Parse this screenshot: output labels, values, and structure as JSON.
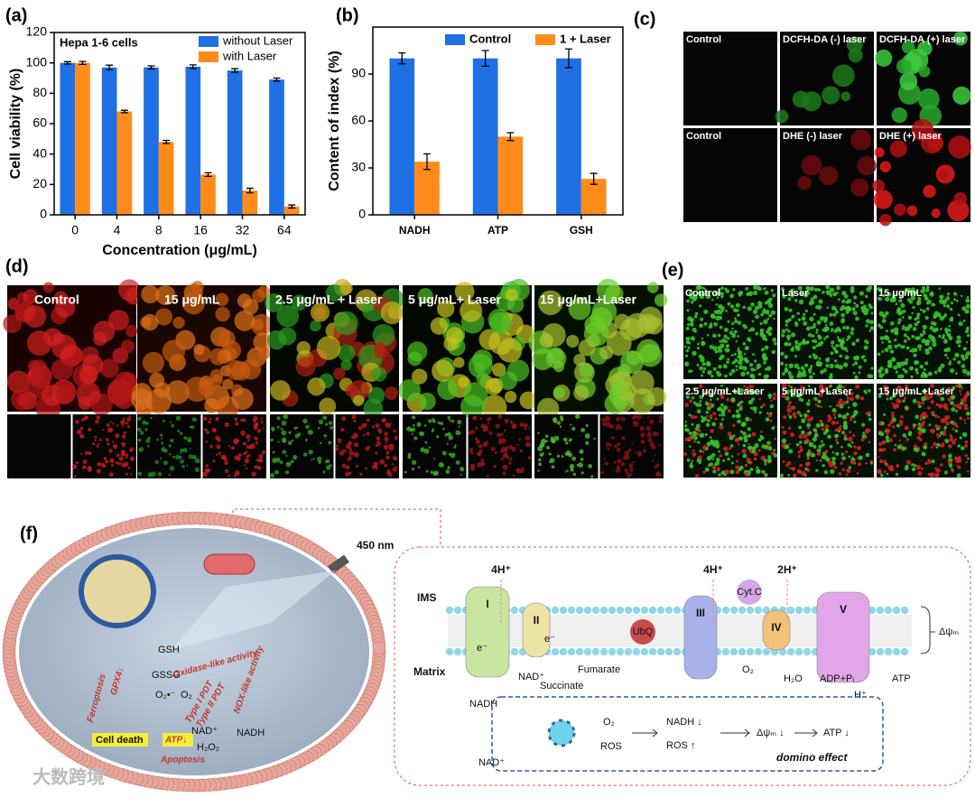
{
  "chart_data": [
    {
      "type": "bar",
      "panel": "(a)",
      "annotation": "Hepa 1-6 cells",
      "categories": [
        "0",
        "4",
        "8",
        "16",
        "32",
        "64"
      ],
      "xlabel": "Concentration (μg/mL)",
      "ylabel": "Cell viability (%)",
      "ylim": [
        0,
        120
      ],
      "yticks": [
        0,
        20,
        40,
        60,
        80,
        100,
        120
      ],
      "legend": "upper right",
      "series": [
        {
          "name": "without Laser",
          "color": "#1f6fe5",
          "values": [
            100,
            97,
            97,
            97.5,
            95,
            89
          ],
          "errors": [
            0.8,
            1.5,
            1,
            1.2,
            1.2,
            1
          ]
        },
        {
          "name": "with Laser",
          "color": "#ff8c1a",
          "values": [
            100,
            68,
            48,
            26.5,
            16,
            5.5
          ],
          "errors": [
            1,
            0.8,
            1,
            1.2,
            1.5,
            1
          ]
        }
      ]
    },
    {
      "type": "bar",
      "panel": "(b)",
      "categories": [
        "NADH",
        "ATP",
        "GSH"
      ],
      "ylabel": "Content of index (%)",
      "ylim": [
        0,
        120
      ],
      "yticks": [
        0,
        30,
        60,
        90
      ],
      "legend": "upper center",
      "series": [
        {
          "name": "Control",
          "color": "#1f6fe5",
          "values": [
            100,
            100,
            100
          ],
          "errors": [
            3.5,
            5,
            6
          ]
        },
        {
          "name": "1 + Laser",
          "color": "#ff8c1a",
          "values": [
            34,
            50,
            23
          ],
          "errors": [
            5,
            2.5,
            3.5
          ]
        }
      ]
    }
  ],
  "panel_c": {
    "label": "(c)",
    "captions": [
      "Control",
      "DCFH-DA (-) laser",
      "DCFH-DA (+) laser",
      "Control",
      "DHE (-) laser",
      "DHE (+) laser"
    ]
  },
  "panel_d": {
    "label": "(d)",
    "captions": [
      "Control",
      "15  μg/mL",
      "2.5 μg/mL + Laser",
      "5 μg/mL+ Laser",
      "15 μg/mL+Laser"
    ]
  },
  "panel_e": {
    "label": "(e)",
    "captions": [
      "Control",
      "Laser",
      "15 μg/mL",
      "2.5 μg/mL+Laser",
      "5 μg/mL+Laser",
      "15 μg/mL+Laser"
    ]
  },
  "panel_f": {
    "label": "(f)",
    "wavelength": "450 nm",
    "cell": {
      "gsh": "GSH",
      "gssg": "GSSG",
      "oxidase": "Oxidase-like activity",
      "ferroptosis": "Ferroptosis",
      "gpx4": "GPX4↓",
      "type1": "Type I PDT",
      "type2": "Type II PDT",
      "nox": "NOX-like activity",
      "superoxide": "O₂•⁻",
      "oxygen": "O₂",
      "cell_death": "Cell death",
      "atp": "ATP↓",
      "apoptosis": "Apoptosis",
      "nad": "NAD⁺",
      "nadh": "NADH",
      "h2o2": "H₂O₂"
    },
    "chain": {
      "ims": "IMS",
      "matrix": "Matrix",
      "h1": "4H⁺",
      "h2": "4H⁺",
      "h3": "2H⁺",
      "c1": "I",
      "c2": "II",
      "c3": "III",
      "c4": "IV",
      "c5": "V",
      "ubq": "UbQ",
      "cytc": "Cyt.C",
      "e1": "e⁻",
      "e2": "e⁻",
      "nad": "NAD⁺",
      "succinate": "Succinate",
      "fumarate": "Fumarate",
      "o2": "O₂",
      "h2o": "H₂O",
      "adp": "ADP+Pᵢ",
      "atp": "ATP",
      "hplus": "H⁺",
      "psi": "Δψₘ"
    },
    "domino": {
      "nadh": "NADH",
      "o2": "O₂",
      "nad": "NAD⁺",
      "ros": "ROS",
      "nadh_down": "NADH ↓",
      "ros_up": "ROS ↑",
      "psi_down": "Δψₘ ↓",
      "atp_down": "ATP ↓",
      "title": "domino effect"
    }
  },
  "watermark": "大数跨境"
}
